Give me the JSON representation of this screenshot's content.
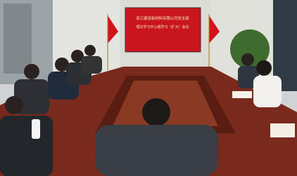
{
  "scene": {
    "screen": {
      "title": "浙江建设新材料有限公司党支部",
      "subtitle": "理论学习中心组学习（扩大）会议"
    }
  }
}
